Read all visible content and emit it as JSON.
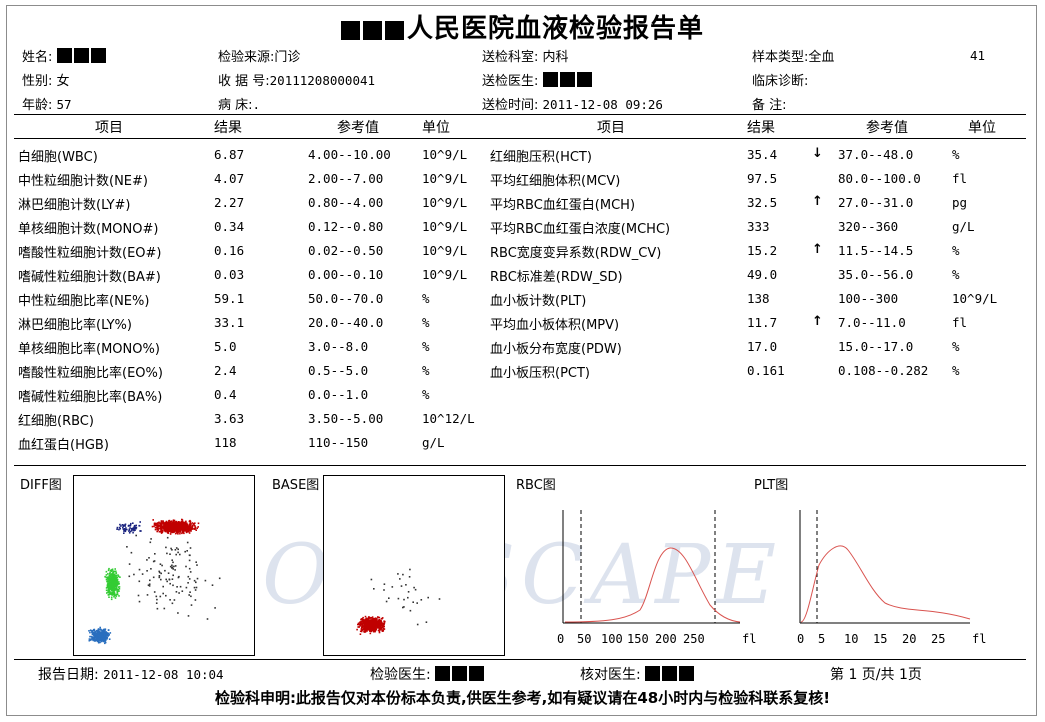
{
  "title": "人民医院血液检验报告单",
  "header": {
    "name_label": "姓名:",
    "gender_label": "性别:",
    "gender": "女",
    "age_label": "年龄:",
    "age": "57",
    "source_label": "检验来源:",
    "source": "门诊",
    "receipt_label": "收 据 号:",
    "receipt": "20111208000041",
    "bed_label": "病    床:",
    "bed": ".",
    "dept_label": "送检科室:",
    "dept": "内科",
    "doctor_label": "送检医生:",
    "time_label": "送检时间:",
    "time": "2011-12-08 09:26",
    "sample_label": "样本类型:",
    "sample": "全血",
    "sample_no": "41",
    "diag_label": "临床诊断:",
    "remark_label": "备    注:"
  },
  "columns": {
    "item": "项目",
    "result": "结果",
    "ref": "参考值",
    "unit": "单位"
  },
  "left_rows": [
    {
      "item": "白细胞(WBC)",
      "result": "6.87",
      "ref": "4.00--10.00",
      "unit": "10^9/L"
    },
    {
      "item": "中性粒细胞计数(NE#)",
      "result": "4.07",
      "ref": "2.00--7.00",
      "unit": "10^9/L"
    },
    {
      "item": "淋巴细胞计数(LY#)",
      "result": "2.27",
      "ref": "0.80--4.00",
      "unit": "10^9/L"
    },
    {
      "item": "单核细胞计数(MONO#)",
      "result": "0.34",
      "ref": "0.12--0.80",
      "unit": "10^9/L"
    },
    {
      "item": "嗜酸性粒细胞计数(EO#)",
      "result": "0.16",
      "ref": "0.02--0.50",
      "unit": "10^9/L"
    },
    {
      "item": "嗜碱性粒细胞计数(BA#)",
      "result": "0.03",
      "ref": "0.00--0.10",
      "unit": "10^9/L"
    },
    {
      "item": "中性粒细胞比率(NE%)",
      "result": "59.1",
      "ref": "50.0--70.0",
      "unit": "%"
    },
    {
      "item": "淋巴细胞比率(LY%)",
      "result": "33.1",
      "ref": "20.0--40.0",
      "unit": "%"
    },
    {
      "item": "单核细胞比率(MONO%)",
      "result": " 5.0",
      "ref": "3.0--8.0",
      "unit": "%"
    },
    {
      "item": "嗜酸性粒细胞比率(EO%)",
      "result": "2.4",
      "ref": "0.5--5.0",
      "unit": "%"
    },
    {
      "item": "嗜碱性粒细胞比率(BA%)",
      "result": "0.4",
      "ref": "0.0--1.0",
      "unit": "%"
    },
    {
      "item": "红细胞(RBC)",
      "result": "3.63",
      "ref": "3.50--5.00",
      "unit": "10^12/L"
    },
    {
      "item": "血红蛋白(HGB)",
      "result": "118",
      "ref": "110--150",
      "unit": "g/L"
    }
  ],
  "right_rows": [
    {
      "item": "红细胞压积(HCT)",
      "result": "35.4",
      "flag": "↓",
      "ref": "37.0--48.0",
      "unit": "%"
    },
    {
      "item": "平均红细胞体积(MCV)",
      "result": "97.5",
      "flag": "",
      "ref": "80.0--100.0",
      "unit": "fl"
    },
    {
      "item": "平均RBC血红蛋白(MCH)",
      "result": "32.5",
      "flag": "↑",
      "ref": "27.0--31.0",
      "unit": "pg"
    },
    {
      "item": "平均RBC血红蛋白浓度(MCHC)",
      "result": "333",
      "flag": "",
      "ref": "320--360",
      "unit": "g/L"
    },
    {
      "item": "RBC宽度变异系数(RDW_CV)",
      "result": "15.2",
      "flag": "↑",
      "ref": "11.5--14.5",
      "unit": "%"
    },
    {
      "item": "RBC标准差(RDW_SD)",
      "result": "49.0",
      "flag": "",
      "ref": "35.0--56.0",
      "unit": "%"
    },
    {
      "item": "血小板计数(PLT)",
      "result": "138",
      "flag": "",
      "ref": "100--300",
      "unit": "10^9/L"
    },
    {
      "item": "平均血小板体积(MPV)",
      "result": "11.7",
      "flag": "↑",
      "ref": "7.0--11.0",
      "unit": "fl"
    },
    {
      "item": "血小板分布宽度(PDW)",
      "result": "17.0",
      "flag": "",
      "ref": "15.0--17.0",
      "unit": "%"
    },
    {
      "item": "血小板压积(PCT)",
      "result": "0.161",
      "flag": "",
      "ref": "0.108--0.282",
      "unit": "%"
    }
  ],
  "plots": {
    "diff_label": "DIFF图",
    "base_label": "BASE图",
    "rbc_label": "RBC图",
    "plt_label": "PLT图",
    "watermark": "SOFTSCAPE",
    "rbc_ticks": [
      "0",
      "50",
      "100",
      "150",
      "200",
      "250"
    ],
    "rbc_unit": "fl",
    "plt_ticks": [
      "0",
      "5",
      "10",
      "15",
      "20",
      "25"
    ],
    "plt_unit": "fl",
    "colors": {
      "red": "#c00000",
      "green": "#33cc33",
      "blue": "#2a6fbf",
      "navy": "#1a237e",
      "curve": "#d9534f"
    }
  },
  "footer": {
    "report_date_label": "报告日期:",
    "report_date": "2011-12-08 10:04",
    "tester_label": "检验医生:",
    "checker_label": "核对医生:",
    "page": "第 1 页/共 1页",
    "notice": "检验科申明:此报告仅对本份标本负责,供医生参考,如有疑议请在48小时内与检验科联系复核!"
  }
}
